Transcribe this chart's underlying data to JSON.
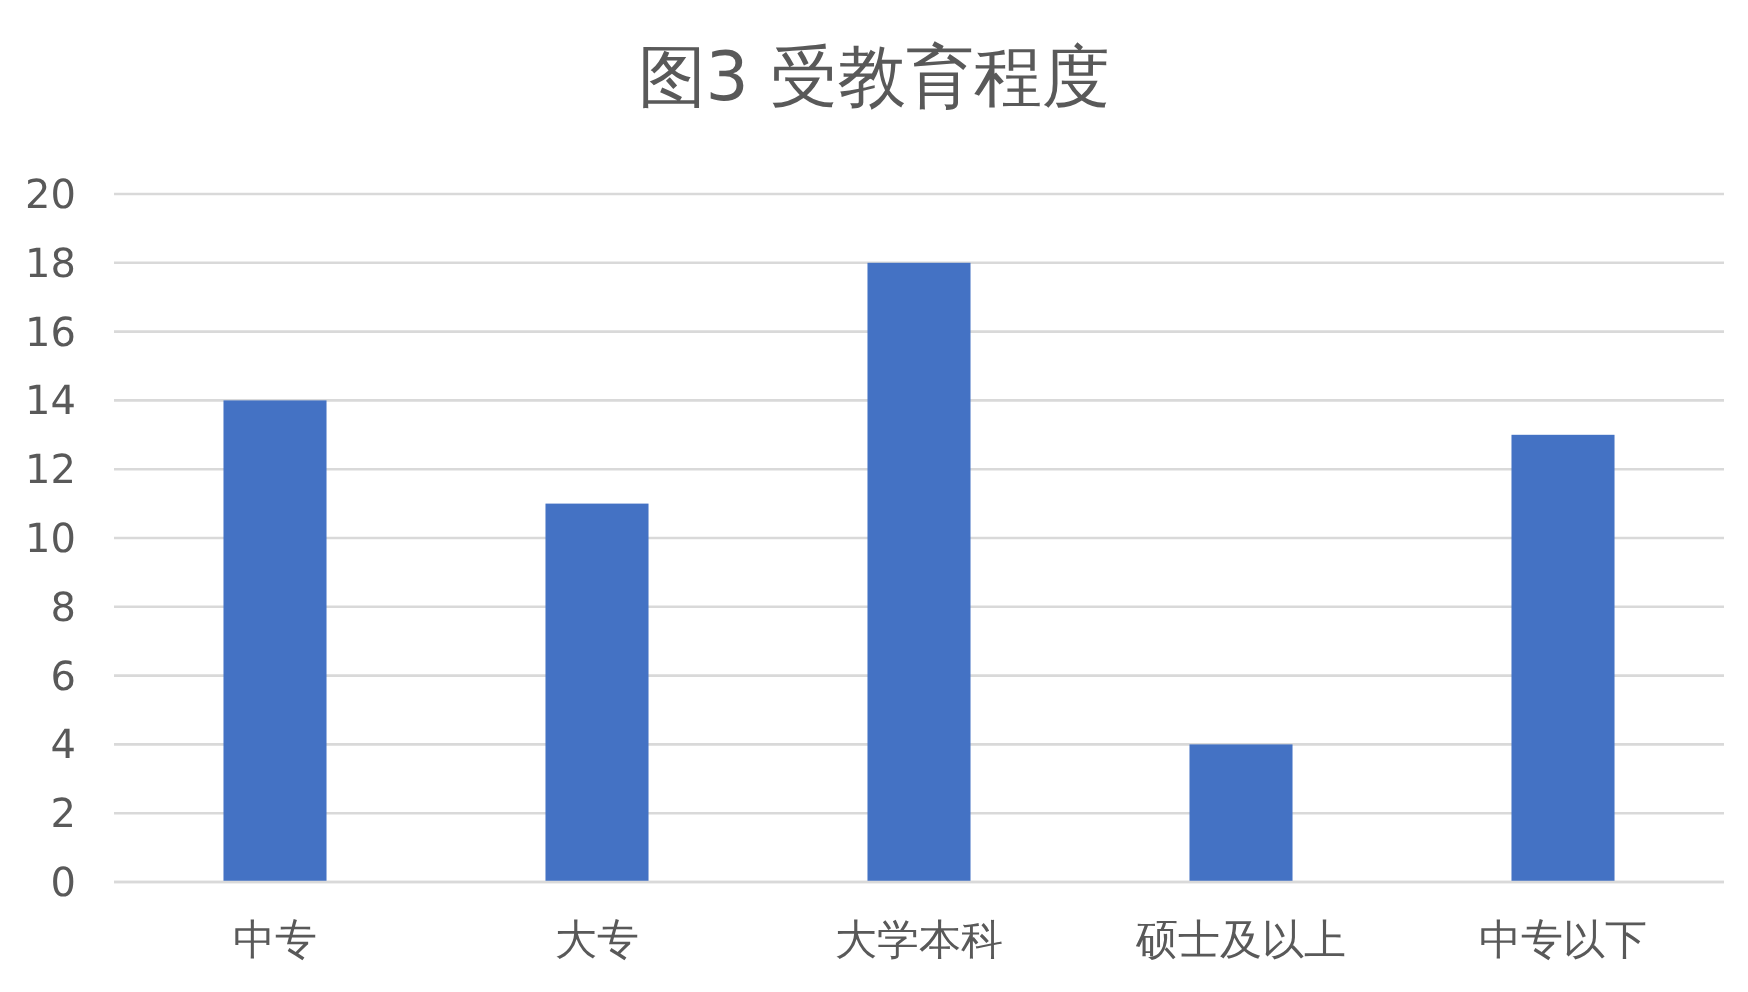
{
  "chart_data": {
    "type": "bar",
    "title": "图3 受教育程度",
    "categories": [
      "中专",
      "大专",
      "大学本科",
      "硕士及以上",
      "中专以下"
    ],
    "values": [
      14,
      11,
      18,
      4,
      13
    ],
    "color": "#4472c4",
    "ylim": [
      0,
      20
    ],
    "yticks": [
      0,
      2,
      4,
      6,
      8,
      10,
      12,
      14,
      16,
      18,
      20
    ],
    "grid": "y"
  }
}
